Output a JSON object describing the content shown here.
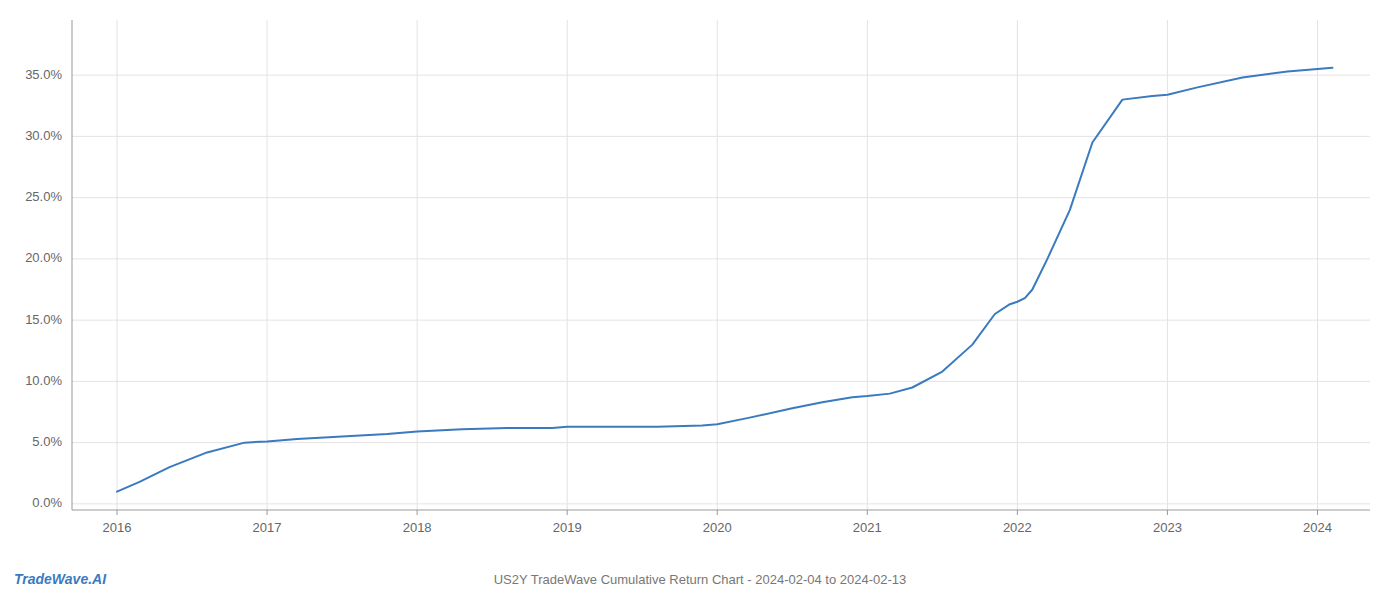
{
  "chart_data": {
    "type": "line",
    "title": "US2Y TradeWave Cumulative Return Chart - 2024-02-04 to 2024-02-13",
    "annotations": [
      {
        "text": "TradeWave.AI",
        "color": "#3a7abf"
      }
    ],
    "color": "#3a7abf",
    "grid": true,
    "x": [
      2016.0,
      2016.15,
      2016.35,
      2016.6,
      2016.85,
      2017.0,
      2017.2,
      2017.5,
      2017.8,
      2018.0,
      2018.3,
      2018.6,
      2018.9,
      2019.0,
      2019.3,
      2019.6,
      2019.9,
      2020.0,
      2020.2,
      2020.5,
      2020.7,
      2020.9,
      2021.0,
      2021.15,
      2021.3,
      2021.5,
      2021.7,
      2021.85,
      2021.95,
      2022.0,
      2022.05,
      2022.1,
      2022.2,
      2022.35,
      2022.5,
      2022.7,
      2022.9,
      2023.0,
      2023.2,
      2023.5,
      2023.8,
      2024.0,
      2024.1
    ],
    "values": [
      0.01,
      0.018,
      0.03,
      0.042,
      0.05,
      0.051,
      0.053,
      0.055,
      0.057,
      0.059,
      0.061,
      0.062,
      0.062,
      0.063,
      0.063,
      0.063,
      0.064,
      0.065,
      0.07,
      0.078,
      0.083,
      0.087,
      0.088,
      0.09,
      0.095,
      0.108,
      0.13,
      0.155,
      0.163,
      0.165,
      0.168,
      0.175,
      0.2,
      0.24,
      0.295,
      0.33,
      0.333,
      0.334,
      0.34,
      0.348,
      0.353,
      0.355,
      0.356
    ],
    "xlim": [
      2015.7,
      2024.35
    ],
    "ylim": [
      -0.005,
      0.395
    ],
    "xticks": [
      2016,
      2017,
      2018,
      2019,
      2020,
      2021,
      2022,
      2023,
      2024
    ],
    "yticks": [
      {
        "value": 0.0,
        "label": "0.0%"
      },
      {
        "value": 0.05,
        "label": "5.0%"
      },
      {
        "value": 0.1,
        "label": "10.0%"
      },
      {
        "value": 0.15,
        "label": "15.0%"
      },
      {
        "value": 0.2,
        "label": "20.0%"
      },
      {
        "value": 0.25,
        "label": "25.0%"
      },
      {
        "value": 0.3,
        "label": "30.0%"
      },
      {
        "value": 0.35,
        "label": "35.0%"
      }
    ]
  }
}
